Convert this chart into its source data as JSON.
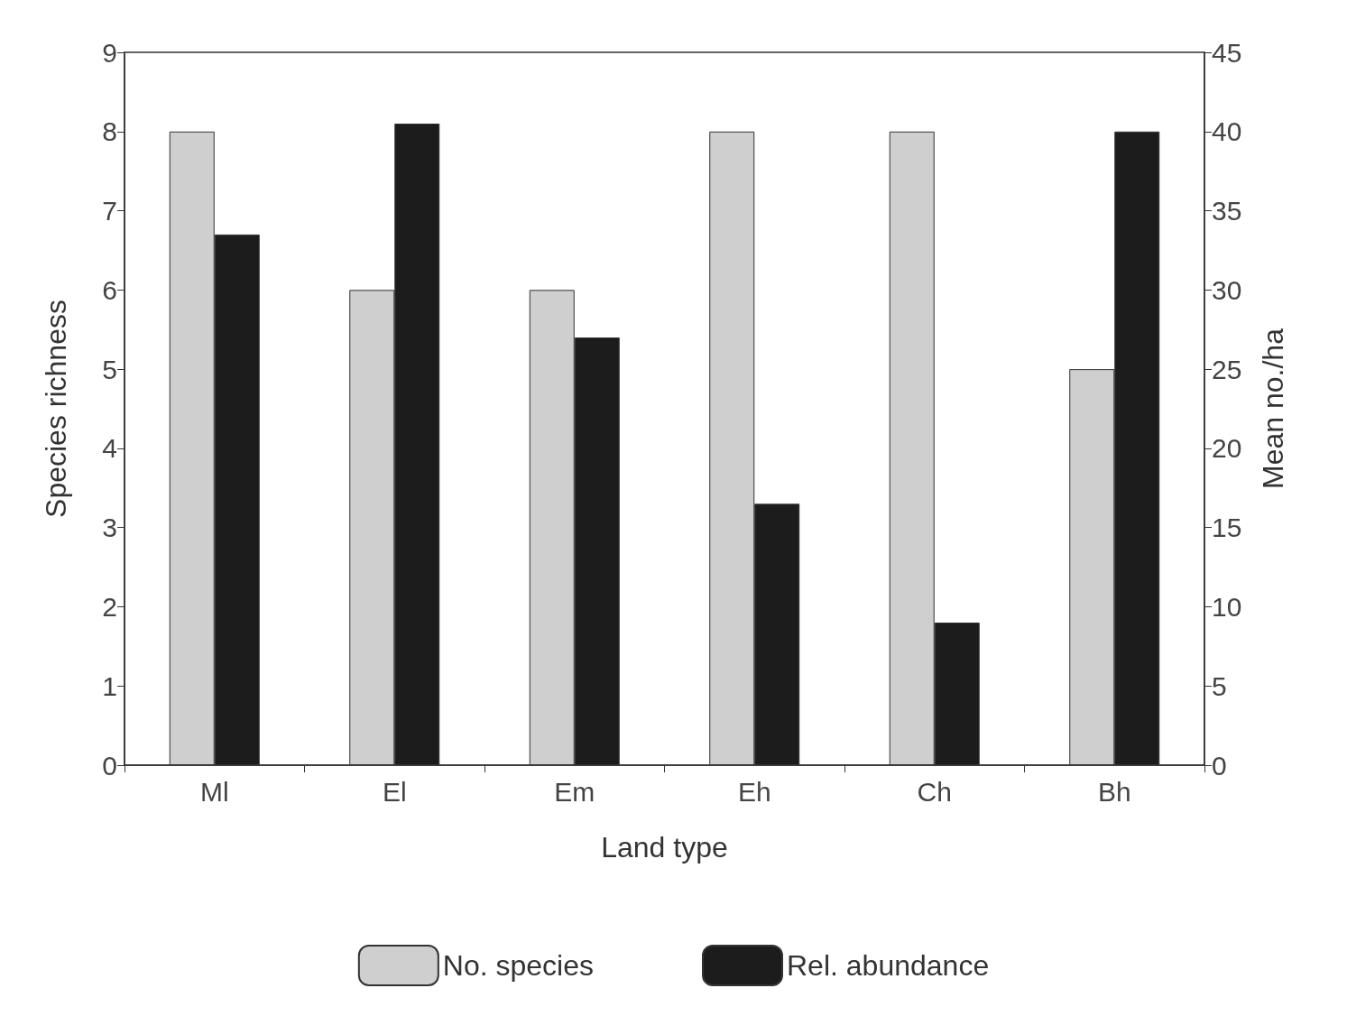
{
  "chart_data": {
    "type": "bar",
    "xlabel": "Land type",
    "ylabel": "Species richness",
    "y2label": "Mean no./ha",
    "categories": [
      "Ml",
      "El",
      "Em",
      "Eh",
      "Ch",
      "Bh"
    ],
    "series": [
      {
        "name": "No. species",
        "color": "#cfcfcf",
        "values": [
          8,
          6,
          6,
          8,
          8,
          5
        ]
      },
      {
        "name": "Rel. abundance",
        "color": "#1c1c1c",
        "axis": "y2",
        "values": [
          33.5,
          40.5,
          27,
          16.5,
          9,
          40
        ]
      }
    ],
    "ylim": [
      0,
      9
    ],
    "yticks": [
      0,
      1,
      2,
      3,
      4,
      5,
      6,
      7,
      8,
      9
    ],
    "y2lim": [
      0,
      45
    ],
    "y2ticks": [
      0,
      5,
      10,
      15,
      20,
      25,
      30,
      35,
      40,
      45
    ],
    "grid": false,
    "legend": "bottom"
  }
}
